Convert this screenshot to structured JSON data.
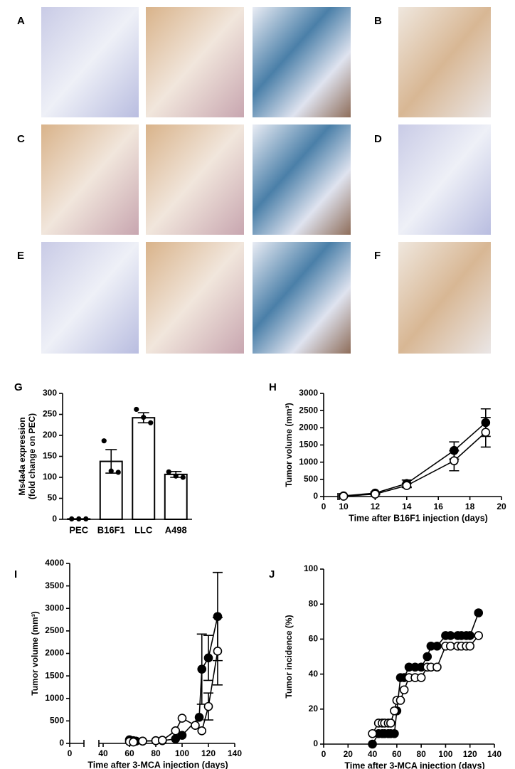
{
  "image_panels": [
    "A",
    "B",
    "C",
    "D",
    "E",
    "F"
  ],
  "chart_data": [
    {
      "type": "bar",
      "label": "G",
      "ylabel": [
        "Ms4a4a expression",
        "(fold change on PEC)"
      ],
      "categories": [
        "PEC",
        "B16F1",
        "LLC",
        "A498"
      ],
      "values": [
        1,
        138,
        242,
        107
      ],
      "errors": [
        0,
        28,
        12,
        7
      ],
      "points": [
        [
          1,
          1,
          1
        ],
        [
          187,
          115,
          112
        ],
        [
          262,
          243,
          230
        ],
        [
          113,
          103,
          100
        ]
      ],
      "color": "#ffffff",
      "ylim": [
        0,
        300
      ],
      "yticks": [
        0,
        50,
        100,
        150,
        200,
        250,
        300
      ]
    },
    {
      "type": "line",
      "label": "H",
      "ylabel": "Tumor volume (mm³)",
      "xlabel": "Time after B16F1 injection (days)",
      "axis_break": true,
      "xlim": [
        0,
        20
      ],
      "xticks": [
        0,
        10,
        12,
        14,
        16,
        18,
        20
      ],
      "ylim": [
        0,
        3000
      ],
      "yticks": [
        0,
        500,
        1000,
        1500,
        2000,
        2500,
        3000
      ],
      "series": [
        {
          "fill": "#000000",
          "x": [
            10,
            12,
            14,
            17,
            19
          ],
          "values": [
            20,
            100,
            380,
            1340,
            2150
          ],
          "errors": [
            10,
            30,
            100,
            250,
            400
          ]
        },
        {
          "fill": "#ffffff",
          "x": [
            10,
            12,
            14,
            17,
            19
          ],
          "values": [
            10,
            70,
            320,
            1040,
            1870
          ],
          "errors": [
            5,
            20,
            60,
            290,
            430
          ]
        }
      ]
    },
    {
      "type": "line",
      "label": "I",
      "ylabel": "Tumor volume (mm³)",
      "xlabel": "Time after 3-MCA injection (days)",
      "axis_break": true,
      "xlim": [
        0,
        140
      ],
      "xticks": [
        0,
        40,
        60,
        80,
        100,
        120,
        140
      ],
      "ylim": [
        0,
        4000
      ],
      "yticks": [
        0,
        500,
        1000,
        1500,
        2000,
        2500,
        3000,
        3500,
        4000
      ],
      "series": [
        {
          "fill": "#000000",
          "x": [
            60,
            63,
            65,
            70,
            80,
            85,
            95,
            100,
            113,
            115,
            120,
            127
          ],
          "values": [
            80,
            60,
            50,
            50,
            60,
            60,
            100,
            180,
            580,
            1650,
            1900,
            2820
          ],
          "errors": [
            0,
            0,
            0,
            0,
            0,
            0,
            0,
            0,
            0,
            780,
            500,
            980
          ]
        },
        {
          "fill": "#ffffff",
          "x": [
            60,
            63,
            70,
            80,
            85,
            95,
            100,
            110,
            115,
            120,
            127
          ],
          "values": [
            40,
            30,
            50,
            60,
            70,
            280,
            560,
            400,
            280,
            820,
            2050
          ],
          "errors": [
            0,
            0,
            0,
            0,
            0,
            0,
            0,
            0,
            0,
            300,
            750
          ]
        }
      ]
    },
    {
      "type": "line",
      "label": "J",
      "ylabel": "Tumor incidence (%)",
      "xlabel": "Time after 3-MCA injection (days)",
      "xlim": [
        0,
        140
      ],
      "xticks": [
        0,
        20,
        40,
        60,
        80,
        100,
        120,
        140
      ],
      "ylim": [
        0,
        100
      ],
      "yticks": [
        0,
        20,
        40,
        60,
        80,
        100
      ],
      "series": [
        {
          "fill": "#000000",
          "x": [
            40,
            45,
            48,
            50,
            53,
            55,
            58,
            60,
            63,
            66,
            70,
            75,
            80,
            85,
            88,
            93,
            100,
            104,
            110,
            113,
            117,
            120,
            127
          ],
          "values": [
            0,
            6,
            6,
            6,
            6,
            6,
            6,
            19,
            38,
            38,
            44,
            44,
            44,
            50,
            56,
            56,
            62,
            62,
            62,
            62,
            62,
            62,
            75
          ]
        },
        {
          "fill": "#ffffff",
          "x": [
            40,
            45,
            48,
            50,
            53,
            55,
            58,
            60,
            63,
            66,
            70,
            75,
            80,
            85,
            88,
            93,
            100,
            104,
            110,
            113,
            117,
            120,
            127
          ],
          "values": [
            6,
            12,
            12,
            12,
            12,
            12,
            19,
            25,
            25,
            31,
            38,
            38,
            38,
            44,
            44,
            44,
            56,
            56,
            56,
            56,
            56,
            56,
            62
          ]
        }
      ]
    }
  ]
}
